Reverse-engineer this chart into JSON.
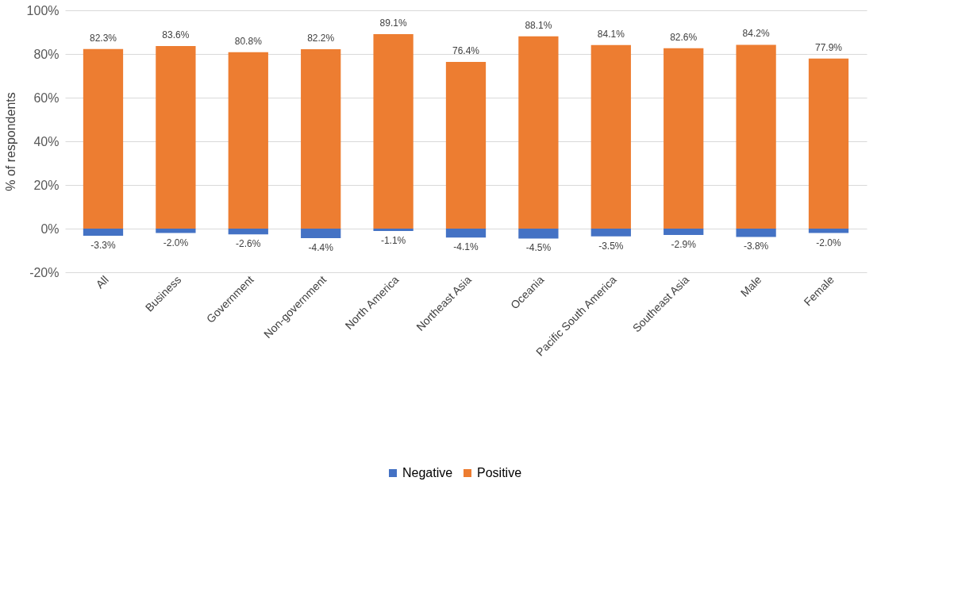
{
  "chart_data": {
    "type": "bar",
    "ylabel": "% of respondents",
    "legend": "bottom",
    "grid": "y",
    "stacked": true,
    "categories": [
      "All",
      "Business",
      "Government",
      "Non-government",
      "North America",
      "Northeast Asia",
      "Oceania",
      "Pacific South America",
      "Southeast Asia",
      "Male",
      "Female"
    ],
    "ylim": [
      -20,
      100
    ],
    "yticks": [
      {
        "value": -20,
        "label": "-20%"
      },
      {
        "value": 0,
        "label": "0%"
      },
      {
        "value": 20,
        "label": "20%"
      },
      {
        "value": 40,
        "label": "40%"
      },
      {
        "value": 60,
        "label": "60%"
      },
      {
        "value": 80,
        "label": "80%"
      },
      {
        "value": 100,
        "label": "100%"
      }
    ],
    "series": [
      {
        "name": "Negative",
        "color": "#4472c4",
        "values": [
          -3.3,
          -2.0,
          -2.6,
          -4.4,
          -1.1,
          -4.1,
          -4.5,
          -3.5,
          -2.9,
          -3.8,
          -2.0
        ],
        "value_labels": [
          "-3.3%",
          "-2.0%",
          "-2.6%",
          "-4.4%",
          "-1.1%",
          "-4.1%",
          "-4.5%",
          "-3.5%",
          "-2.9%",
          "-3.8%",
          "-2.0%"
        ]
      },
      {
        "name": "Positive",
        "color": "#ed7d31",
        "values": [
          82.3,
          83.6,
          80.8,
          82.2,
          89.1,
          76.4,
          88.1,
          84.1,
          82.6,
          84.2,
          77.9
        ],
        "value_labels": [
          "82.3%",
          "83.6%",
          "80.8%",
          "82.2%",
          "89.1%",
          "76.4%",
          "88.1%",
          "84.1%",
          "82.6%",
          "84.2%",
          "77.9%"
        ]
      }
    ]
  }
}
